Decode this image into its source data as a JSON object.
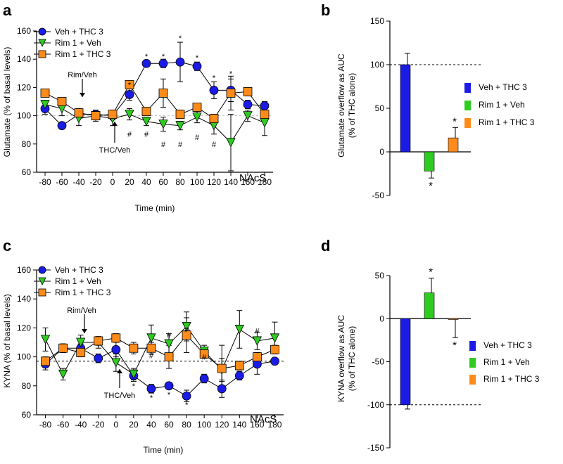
{
  "chart_data": [
    {
      "id": "a",
      "type": "line",
      "panel_label": "a",
      "xlabel": "Time (min)",
      "ylabel": "Glutamate (% of basal levels)",
      "xlim": [
        -90,
        190
      ],
      "ylim": [
        60,
        160
      ],
      "x_ticks": [
        -80,
        -60,
        -40,
        -20,
        0,
        20,
        40,
        60,
        80,
        100,
        120,
        140,
        160,
        180
      ],
      "y_ticks": [
        60,
        80,
        100,
        120,
        140,
        160
      ],
      "baseline": 100,
      "region": "NAcS",
      "annotations": [
        {
          "text": "Rim/Veh",
          "x": -40,
          "y": 120,
          "arrow": "down",
          "arrow_to": 105
        },
        {
          "text": "THC/Veh",
          "x": 0,
          "y": 81,
          "arrow": "up",
          "arrow_to": 93
        }
      ],
      "series": [
        {
          "name": "Veh + THC 3",
          "color": "#1b1be6",
          "marker": "circle",
          "x": [
            -80,
            -60,
            -40,
            -20,
            0,
            20,
            40,
            60,
            80,
            100,
            120,
            140,
            160,
            180
          ],
          "values": [
            105,
            93,
            101,
            101,
            100,
            115,
            137,
            137,
            138,
            135,
            118,
            118,
            108,
            107
          ],
          "errors": [
            4,
            2,
            2,
            2,
            3,
            4,
            2,
            3,
            14,
            3,
            6,
            8,
            3,
            3
          ]
        },
        {
          "name": "Rim 1 + Veh",
          "color": "#2ecc20",
          "marker": "triangle-down",
          "x": [
            -80,
            -60,
            -40,
            -20,
            0,
            20,
            40,
            60,
            80,
            100,
            120,
            140,
            160,
            180
          ],
          "values": [
            108,
            105,
            98,
            100,
            98,
            101,
            96,
            94,
            93,
            99,
            93,
            81,
            100,
            95
          ],
          "errors": [
            3,
            5,
            5,
            3,
            5,
            4,
            3,
            5,
            3,
            4,
            6,
            20,
            4,
            9
          ]
        },
        {
          "name": "Rim 1 + THC 3",
          "color": "#ff8c1a",
          "marker": "square",
          "x": [
            -80,
            -60,
            -40,
            -20,
            0,
            20,
            40,
            60,
            80,
            100,
            120,
            140,
            160,
            180
          ],
          "values": [
            116,
            110,
            102,
            100,
            101,
            122,
            103,
            116,
            101,
            106,
            98,
            116,
            117,
            101
          ],
          "errors": [
            2,
            2,
            3,
            4,
            3,
            2,
            2,
            10,
            3,
            2,
            3,
            12,
            3,
            3
          ]
        }
      ],
      "marks": [
        {
          "text": "*",
          "x": 20,
          "y": 122
        },
        {
          "text": "*",
          "x": 40,
          "y": 142
        },
        {
          "text": "*",
          "x": 60,
          "y": 142
        },
        {
          "text": "*",
          "x": 80,
          "y": 155
        },
        {
          "text": "*",
          "x": 100,
          "y": 141
        },
        {
          "text": "*",
          "x": 120,
          "y": 127
        },
        {
          "text": "*",
          "x": 140,
          "y": 130
        },
        {
          "text": "#",
          "x": 20,
          "y": 87
        },
        {
          "text": "#",
          "x": 40,
          "y": 87
        },
        {
          "text": "#",
          "x": 60,
          "y": 80
        },
        {
          "text": "#",
          "x": 80,
          "y": 80
        },
        {
          "text": "#",
          "x": 100,
          "y": 85
        },
        {
          "text": "#",
          "x": 120,
          "y": 80
        }
      ]
    },
    {
      "id": "b",
      "type": "bar",
      "panel_label": "b",
      "ylabel": "Glutamate overflow as AUC (% of THC alone)",
      "ylim": [
        -50,
        150
      ],
      "y_ticks": [
        -50,
        0,
        50,
        100,
        150
      ],
      "dashed_line": 100,
      "categories": [
        "Veh + THC 3",
        "Rim 1 + Veh",
        "Rim 1 + THC 3"
      ],
      "colors": [
        "#1b1be6",
        "#2ecc20",
        "#ff8c1a"
      ],
      "values": [
        100,
        -22,
        16
      ],
      "errors": [
        13,
        8,
        12
      ],
      "stars": [
        "",
        "*",
        "*"
      ]
    },
    {
      "id": "c",
      "type": "line",
      "panel_label": "c",
      "xlabel": "Time (min)",
      "ylabel": "KYNA (% of basal levels)",
      "xlim": [
        -90,
        190
      ],
      "ylim": [
        60,
        160
      ],
      "x_ticks": [
        -80,
        -60,
        -40,
        -20,
        0,
        20,
        40,
        60,
        80,
        100,
        120,
        140,
        160,
        180
      ],
      "y_ticks": [
        60,
        80,
        100,
        120,
        140,
        160
      ],
      "baseline": 97,
      "region": "NAcS",
      "annotations": [
        {
          "text": "Rim/Veh",
          "x": -40,
          "y": 120,
          "arrow": "down",
          "arrow_to": 108
        },
        {
          "text": "THC/Veh",
          "x": 0,
          "y": 78,
          "arrow": "up",
          "arrow_to": 92
        }
      ],
      "series": [
        {
          "name": "Veh + THC 3",
          "color": "#1b1be6",
          "marker": "circle",
          "x": [
            -80,
            -60,
            -40,
            -20,
            0,
            20,
            40,
            60,
            80,
            100,
            120,
            140,
            160,
            180
          ],
          "values": [
            95,
            106,
            106,
            99,
            105,
            87,
            78,
            80,
            73,
            85,
            78,
            87,
            95,
            97
          ],
          "errors": [
            4,
            3,
            3,
            3,
            5,
            4,
            3,
            2,
            4,
            3,
            6,
            3,
            7,
            2
          ]
        },
        {
          "name": "Rim 1 + Veh",
          "color": "#2ecc20",
          "marker": "triangle-down",
          "x": [
            -80,
            -60,
            -40,
            -20,
            0,
            20,
            40,
            60,
            80,
            100,
            120,
            140,
            160,
            180
          ],
          "values": [
            112,
            88,
            110,
            110,
            96,
            88,
            113,
            109,
            121,
            104,
            91,
            119,
            111,
            113
          ],
          "errors": [
            8,
            4,
            5,
            4,
            6,
            4,
            9,
            7,
            10,
            4,
            8,
            13,
            6,
            11
          ]
        },
        {
          "name": "Rim 1 + THC 3",
          "color": "#ff8c1a",
          "marker": "square",
          "x": [
            -80,
            -60,
            -40,
            -20,
            0,
            20,
            40,
            60,
            80,
            100,
            120,
            140,
            160,
            180
          ],
          "values": [
            97,
            106,
            103,
            111,
            113,
            106,
            106,
            100,
            115,
            102,
            92,
            94,
            100,
            105
          ],
          "errors": [
            3,
            3,
            3,
            3,
            3,
            4,
            4,
            8,
            12,
            3,
            16,
            3,
            3,
            3
          ]
        }
      ],
      "marks": [
        {
          "text": "*",
          "x": 20,
          "y": 80
        },
        {
          "text": "*",
          "x": 40,
          "y": 72
        },
        {
          "text": "*",
          "x": 60,
          "y": 74
        },
        {
          "text": "*",
          "x": 80,
          "y": 67
        },
        {
          "text": "#",
          "x": 40,
          "y": 101
        },
        {
          "text": "#",
          "x": 60,
          "y": 115
        },
        {
          "text": "#",
          "x": 80,
          "y": 119
        },
        {
          "text": "#",
          "x": 100,
          "y": 100
        },
        {
          "text": "#",
          "x": 160,
          "y": 118
        }
      ]
    },
    {
      "id": "d",
      "type": "bar",
      "panel_label": "d",
      "ylabel": "KYNA overflow as AUC (% of THC alone)",
      "ylim": [
        -150,
        50
      ],
      "y_ticks": [
        -150,
        -100,
        -50,
        0,
        50
      ],
      "dashed_line": -100,
      "categories": [
        "Veh + THC 3",
        "Rim 1 + Veh",
        "Rim 1 + THC 3"
      ],
      "colors": [
        "#1b1be6",
        "#2ecc20",
        "#ff8c1a"
      ],
      "values": [
        -100,
        30,
        -1
      ],
      "errors": [
        5,
        17,
        21
      ],
      "stars": [
        "",
        "*",
        "*"
      ]
    }
  ]
}
